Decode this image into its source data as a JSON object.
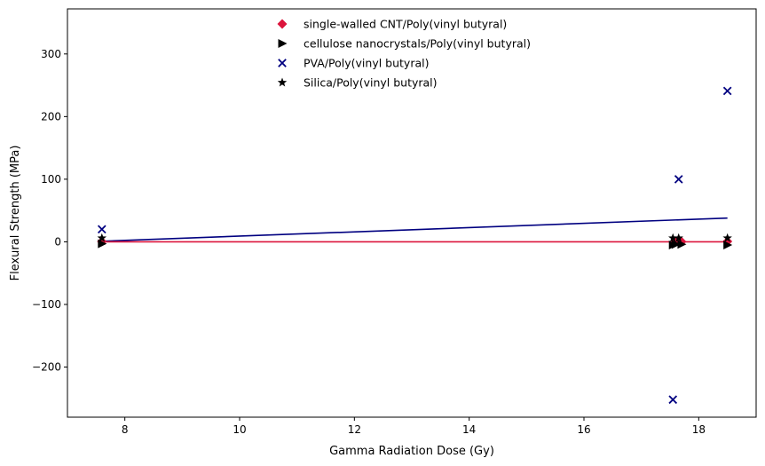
{
  "chart_data": {
    "type": "scatter",
    "title": "",
    "xlabel": "Gamma Radiation Dose (Gy)",
    "ylabel": "Flexural Strength (MPa)",
    "xlim": [
      7.0,
      19.0
    ],
    "ylim": [
      -280,
      372
    ],
    "xticks": [
      8,
      10,
      12,
      14,
      16,
      18
    ],
    "yticks": [
      -200,
      -100,
      0,
      100,
      200,
      300
    ],
    "grid": false,
    "legend_position": "top-center",
    "series": [
      {
        "name": "single-walled CNT/Poly(vinyl butyral)",
        "marker": "diamond",
        "color": "#dc143c",
        "points": [
          [
            7.6,
            0.5
          ],
          [
            17.6,
            0.8
          ],
          [
            17.7,
            0.3
          ],
          [
            18.5,
            0.6
          ]
        ]
      },
      {
        "name": "cellulose nanocrystals/Poly(vinyl butyral)",
        "marker": "triangle-right",
        "color": "#000000",
        "points": [
          [
            7.6,
            -3
          ],
          [
            17.55,
            -5
          ],
          [
            17.6,
            -4
          ],
          [
            17.7,
            -4
          ],
          [
            18.5,
            -5
          ]
        ]
      },
      {
        "name": "PVA/Poly(vinyl butyral)",
        "marker": "x",
        "color": "#000080",
        "points": [
          [
            7.6,
            20
          ],
          [
            17.55,
            -252
          ],
          [
            17.65,
            100
          ],
          [
            18.5,
            241
          ]
        ]
      },
      {
        "name": "Silica/Poly(vinyl butyral)",
        "marker": "star",
        "color": "#000000",
        "points": [
          [
            7.6,
            6
          ],
          [
            17.55,
            6
          ],
          [
            17.65,
            6
          ],
          [
            18.5,
            6
          ]
        ]
      }
    ],
    "trend_lines": [
      {
        "series": "PVA/Poly(vinyl butyral)",
        "color": "#000080",
        "from": [
          7.6,
          1
        ],
        "to": [
          18.5,
          38
        ]
      },
      {
        "series": "single-walled CNT/Poly(vinyl butyral)",
        "color": "#dc143c",
        "from": [
          7.6,
          0
        ],
        "to": [
          18.5,
          0
        ]
      }
    ]
  }
}
